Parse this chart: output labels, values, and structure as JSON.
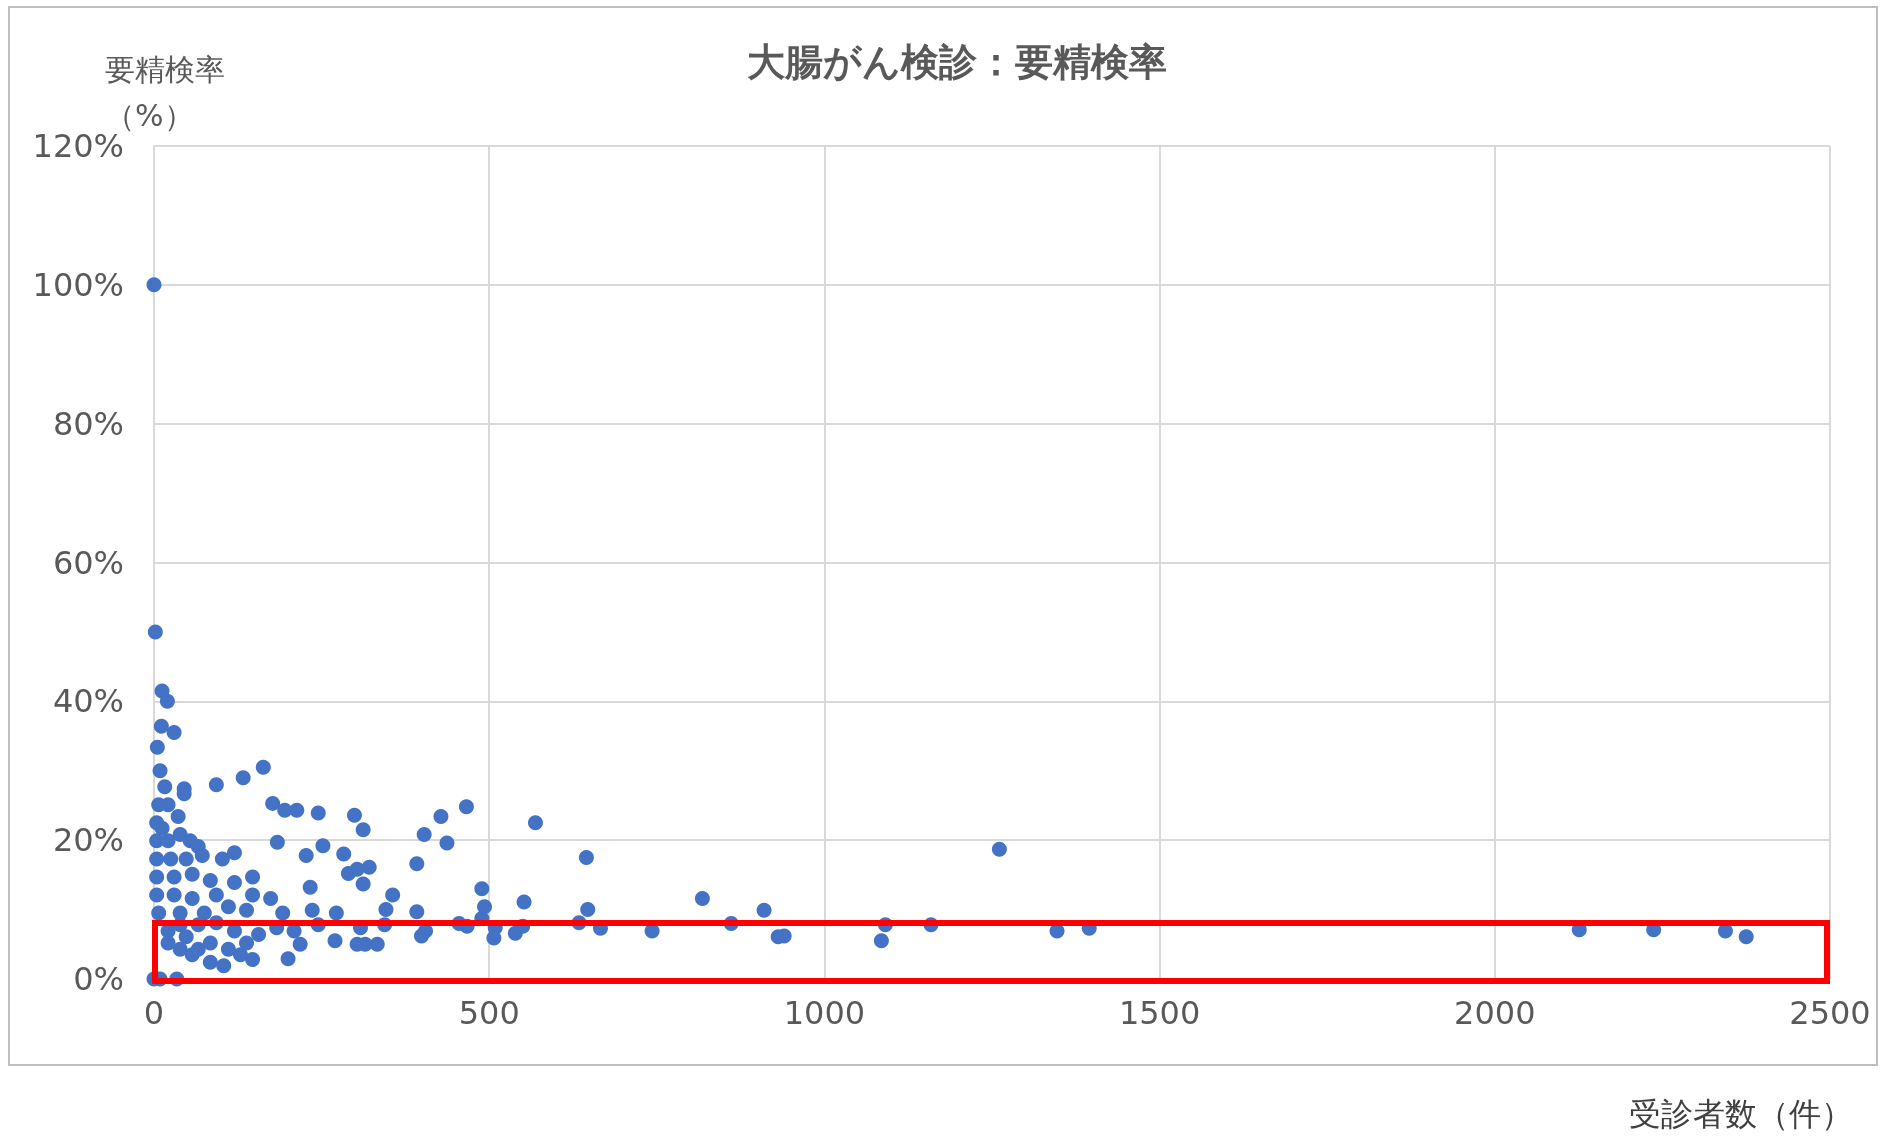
{
  "chart_data": {
    "type": "scatter",
    "title": "大腸がん検診：要精検率",
    "xlabel": "受診者数（件）",
    "ylabel": "要精検率（%）",
    "xlim": [
      0,
      2500
    ],
    "xticks": [
      0,
      500,
      1000,
      1500,
      2000,
      2500
    ],
    "ylim": [
      0,
      120
    ],
    "yticks": [
      {
        "value": 0,
        "label": "0%"
      },
      {
        "value": 20,
        "label": "20%"
      },
      {
        "value": 40,
        "label": "40%"
      },
      {
        "value": 60,
        "label": "60%"
      },
      {
        "value": 80,
        "label": "80%"
      },
      {
        "value": 100,
        "label": "100%"
      },
      {
        "value": 120,
        "label": "120%"
      }
    ],
    "grid": true,
    "marker": "circle",
    "series": [
      {
        "color": "#4472c4",
        "x": [
          0,
          2,
          12,
          20,
          11,
          30,
          5,
          9,
          16,
          45,
          93,
          163,
          133,
          45,
          177,
          195,
          213,
          245,
          299,
          466,
          569,
          428,
          312,
          403,
          437,
          184,
          252,
          1261,
          645,
          392,
          283,
          227,
          321,
          303,
          290,
          312,
          233,
          489,
          356,
          818,
          552,
          493,
          647,
          910,
          346,
          392,
          489,
          634,
          861,
          1159,
          1091,
          743,
          666,
          509,
          550,
          467,
          455,
          1347,
          1395,
          2126,
          2237,
          2344,
          2375,
          931,
          940,
          1085,
          539,
          507,
          399,
          405,
          303,
          315,
          333,
          270,
          218,
          200,
          147,
          104,
          84,
          9,
          34,
          0,
          4,
          4,
          7,
          21,
          36,
          12,
          21,
          39,
          54,
          66,
          4,
          25,
          48,
          72,
          102,
          120,
          4,
          30,
          57,
          84,
          120,
          147,
          4,
          30,
          57,
          93,
          147,
          174,
          7,
          39,
          75,
          111,
          138,
          192,
          236,
          272,
          21,
          48,
          66,
          84,
          120,
          156,
          183,
          57,
          39,
          21,
          245,
          308,
          344,
          111,
          129,
          138,
          39,
          66,
          93,
          209
        ],
        "values": [
          100,
          50,
          41.5,
          40,
          36.4,
          35.5,
          33.4,
          30,
          27.7,
          27.4,
          28,
          30.5,
          29,
          26.7,
          25.3,
          24.3,
          24.3,
          23.9,
          23.6,
          24.8,
          22.5,
          23.4,
          21.5,
          20.8,
          19.6,
          19.7,
          19.2,
          18.7,
          17.5,
          16.6,
          18,
          17.8,
          16.1,
          15.8,
          15.2,
          13.7,
          13.2,
          13,
          12.1,
          11.6,
          11.1,
          10.4,
          10,
          9.9,
          10,
          9.7,
          8.7,
          8.1,
          8,
          7.8,
          7.8,
          6.9,
          7.3,
          7.4,
          7.6,
          7.6,
          8,
          6.9,
          7.3,
          7.1,
          7.1,
          6.9,
          6.1,
          6.1,
          6.2,
          5.5,
          6.6,
          5.9,
          6.2,
          6.9,
          5,
          5,
          5,
          5.5,
          5,
          2.9,
          2.8,
          1.9,
          2.4,
          0,
          0,
          0,
          19.9,
          22.5,
          25.1,
          25.1,
          23.4,
          21.7,
          19.9,
          20.8,
          19.9,
          19.1,
          17.3,
          17.3,
          17.3,
          17.8,
          17.3,
          18.2,
          14.7,
          14.7,
          15.1,
          14.2,
          13.9,
          14.7,
          12.1,
          12.1,
          11.6,
          12.1,
          12.1,
          11.6,
          9.5,
          9.5,
          9.5,
          10.4,
          9.9,
          9.5,
          9.9,
          9.5,
          6.9,
          6.1,
          4.3,
          5.2,
          6.9,
          6.4,
          7.4,
          3.5,
          4.3,
          5.2,
          7.8,
          7.4,
          7.8,
          4.3,
          3.5,
          5.2,
          7.8,
          7.8,
          8.1,
          6.9
        ]
      }
    ]
  }
}
